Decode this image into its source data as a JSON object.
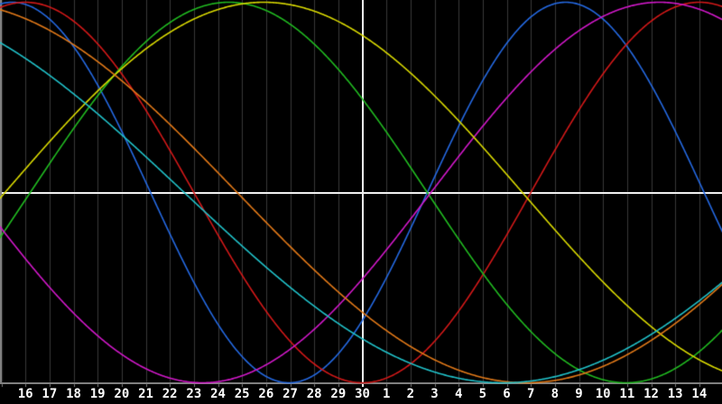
{
  "chart_data": {
    "type": "line",
    "subtype": "biorhythm-sine-cycles",
    "x_axis": {
      "labels": [
        "16",
        "17",
        "18",
        "19",
        "20",
        "21",
        "22",
        "23",
        "24",
        "25",
        "26",
        "27",
        "28",
        "29",
        "30",
        "1",
        "2",
        "3",
        "4",
        "5",
        "6",
        "7",
        "8",
        "9",
        "10",
        "11",
        "12",
        "13",
        "14"
      ],
      "day_start": 15,
      "days_span": 30,
      "tick_spacing_days": 1,
      "grid": true
    },
    "y_axis": {
      "min": -1,
      "max": 1,
      "zero_line": true,
      "labels_visible": false
    },
    "marker": {
      "label": "30",
      "label_index": 14,
      "description": "vertical white line at day 30"
    },
    "series": [
      {
        "name": "blue-cycle",
        "color": "#2468e0",
        "period_days": 23,
        "ascending_zero_day": 9.7,
        "amplitude": 1,
        "value_at_marker": -0.67
      },
      {
        "name": "red-cycle",
        "color": "#d01818",
        "period_days": 28,
        "ascending_zero_day": 9.0,
        "amplitude": 1,
        "value_at_marker": -1.0
      },
      {
        "name": "green-cycle",
        "color": "#20b820",
        "period_days": 33,
        "ascending_zero_day": 16.2,
        "amplitude": 1,
        "value_at_marker": 0.49
      },
      {
        "name": "magenta-cycle",
        "color": "#d018c8",
        "period_days": 38,
        "ascending_zero_day": 32.85,
        "amplitude": 1,
        "value_at_marker": -0.45
      },
      {
        "name": "yellow-cycle",
        "color": "#d8d800",
        "period_days": 43,
        "ascending_zero_day": 15.15,
        "amplitude": 1,
        "value_at_marker": 0.83
      },
      {
        "name": "orange-cycle",
        "color": "#e07818",
        "period_days": 48,
        "ascending_zero_day": 0.8,
        "amplitude": 1,
        "value_at_marker": -0.63
      },
      {
        "name": "cyan-cycle",
        "color": "#20c0c8",
        "period_days": 53,
        "ascending_zero_day": -3.9,
        "amplitude": 1,
        "value_at_marker": -0.77
      }
    ],
    "colors": {
      "background": "#000000",
      "grid": "#383838",
      "zero_axis": "#f0f0f0",
      "marker_line": "#f0f0f0",
      "border": "#808080",
      "label_text": "#ffffff"
    },
    "legend": {
      "visible": false
    }
  }
}
